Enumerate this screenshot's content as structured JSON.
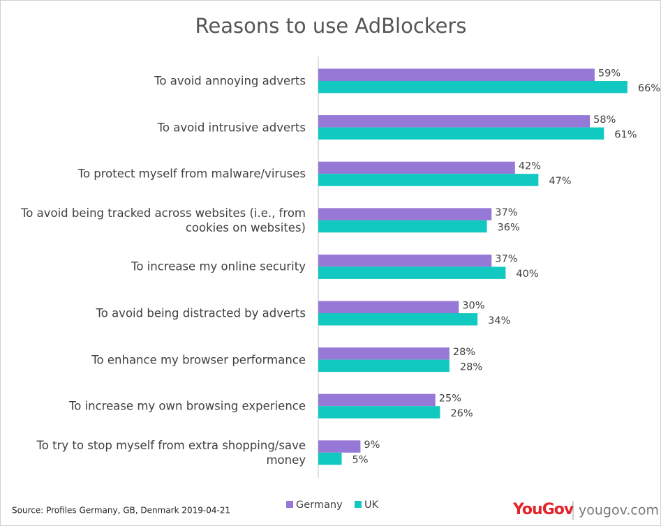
{
  "chart_data": {
    "type": "hbar",
    "title": "Reasons to use AdBlockers",
    "categories": [
      "To avoid annoying adverts",
      "To avoid intrusive adverts",
      "To protect myself from malware/viruses",
      "To avoid being tracked across websites (i.e., from cookies on websites)",
      "To increase my online security",
      "To avoid being distracted by adverts",
      "To enhance my browser performance",
      "To increase my own browsing experience",
      "To try to stop myself from extra shopping/save money"
    ],
    "series": [
      {
        "name": "Germany",
        "color": "#9679d6",
        "values": [
          59,
          58,
          42,
          37,
          37,
          30,
          28,
          25,
          9
        ],
        "value_labels": [
          "59%",
          "58%",
          "42%",
          "37%",
          "37%",
          "30%",
          "28%",
          "25%",
          "9%"
        ]
      },
      {
        "name": "UK",
        "color": "#12c9c1",
        "values": [
          66,
          61,
          47,
          36,
          40,
          34,
          28,
          26,
          5
        ],
        "value_labels": [
          "66%",
          "61%",
          "47%",
          "36%",
          "40%",
          "34%",
          "28%",
          "26%",
          "5%"
        ]
      }
    ],
    "source": "Source: Profiles Germany, GB, Denmark 2019-04-21"
  },
  "branding": {
    "logo": "YouGov",
    "url": "yougov.com"
  }
}
